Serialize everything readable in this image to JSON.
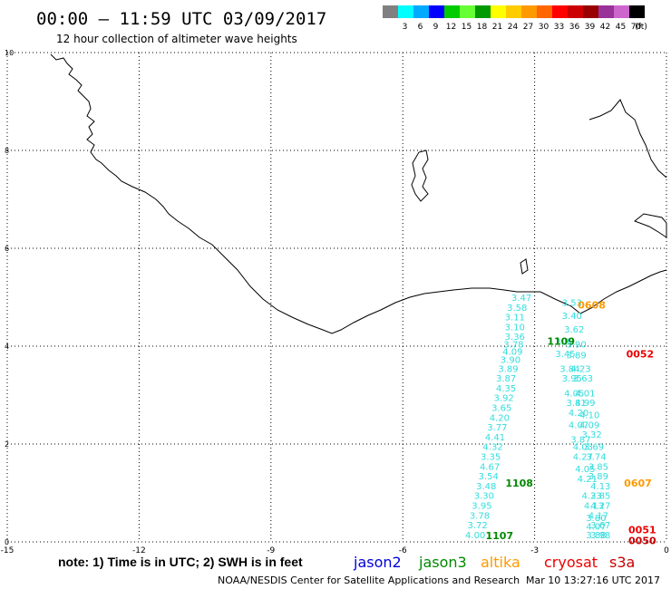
{
  "header": {
    "title": "00:00 – 11:59 UTC 03/09/2017",
    "subtitle": "12 hour collection of altimeter wave heights"
  },
  "scale": {
    "unit": "(ft)",
    "bins": [
      {
        "label": "",
        "color": "#808080"
      },
      {
        "label": "3",
        "color": "#00ffff"
      },
      {
        "label": "6",
        "color": "#00aaff"
      },
      {
        "label": "9",
        "color": "#0000ff"
      },
      {
        "label": "12",
        "color": "#00cc00"
      },
      {
        "label": "15",
        "color": "#66ff33"
      },
      {
        "label": "18",
        "color": "#009900"
      },
      {
        "label": "21",
        "color": "#ffff00"
      },
      {
        "label": "24",
        "color": "#ffcc00"
      },
      {
        "label": "27",
        "color": "#ff9900"
      },
      {
        "label": "30",
        "color": "#ff6600"
      },
      {
        "label": "33",
        "color": "#ff0000"
      },
      {
        "label": "36",
        "color": "#cc0000"
      },
      {
        "label": "39",
        "color": "#990000"
      },
      {
        "label": "42",
        "color": "#993399"
      },
      {
        "label": "45",
        "color": "#cc66cc"
      },
      {
        "label": "70",
        "color": "#000000"
      }
    ]
  },
  "axes": {
    "x_ticks": [
      "-15",
      "-12",
      "-9",
      "-6",
      "-3",
      "0"
    ],
    "y_ticks": [
      "0",
      "2",
      "4",
      "6",
      "8",
      "10"
    ],
    "xlim": [
      -15,
      0
    ],
    "ylim": [
      0,
      10
    ]
  },
  "colors": {
    "swh": "#33dddd",
    "jason2": "#0000dd",
    "jason3": "#008800",
    "altika": "#ff9900",
    "cryosat": "#ee0000",
    "s3a": "#cc0000",
    "coast": "#000000"
  },
  "swh_tracks": [
    {
      "name": "track-west",
      "points": [
        {
          "x": -3.3,
          "y": 5.0,
          "v": "3.47"
        },
        {
          "x": -3.4,
          "y": 4.8,
          "v": "3.58"
        },
        {
          "x": -3.45,
          "y": 4.6,
          "v": "3.11"
        },
        {
          "x": -3.45,
          "y": 4.4,
          "v": "3.10"
        },
        {
          "x": -3.45,
          "y": 4.2,
          "v": "3.36"
        },
        {
          "x": -3.48,
          "y": 4.05,
          "v": "3.78"
        },
        {
          "x": -3.5,
          "y": 3.9,
          "v": "4.09"
        },
        {
          "x": -3.55,
          "y": 3.73,
          "v": "3.90"
        },
        {
          "x": -3.6,
          "y": 3.55,
          "v": "3.89"
        },
        {
          "x": -3.65,
          "y": 3.35,
          "v": "3.87"
        },
        {
          "x": -3.65,
          "y": 3.15,
          "v": "4.35"
        },
        {
          "x": -3.7,
          "y": 2.95,
          "v": "3.92"
        },
        {
          "x": -3.75,
          "y": 2.75,
          "v": "3.65"
        },
        {
          "x": -3.8,
          "y": 2.55,
          "v": "4.20"
        },
        {
          "x": -3.85,
          "y": 2.35,
          "v": "3.77"
        },
        {
          "x": -3.9,
          "y": 2.15,
          "v": "4.41"
        },
        {
          "x": -3.95,
          "y": 1.95,
          "v": "4.32"
        },
        {
          "x": -4.0,
          "y": 1.75,
          "v": "3.35"
        },
        {
          "x": -4.02,
          "y": 1.55,
          "v": "4.67"
        },
        {
          "x": -4.05,
          "y": 1.35,
          "v": "3.54"
        },
        {
          "x": -4.1,
          "y": 1.15,
          "v": "3.48"
        },
        {
          "x": -4.15,
          "y": 0.95,
          "v": "3.30"
        },
        {
          "x": -4.2,
          "y": 0.75,
          "v": "3.95"
        },
        {
          "x": -4.25,
          "y": 0.55,
          "v": "3.78"
        },
        {
          "x": -4.3,
          "y": 0.35,
          "v": "3.72"
        },
        {
          "x": -4.35,
          "y": 0.15,
          "v": "4.00"
        }
      ]
    },
    {
      "name": "track-east",
      "points": [
        {
          "x": -2.15,
          "y": 4.9,
          "v": "3.53"
        },
        {
          "x": -2.15,
          "y": 4.63,
          "v": "3.40"
        },
        {
          "x": -2.1,
          "y": 4.35,
          "v": "3.62"
        },
        {
          "x": -2.05,
          "y": 4.05,
          "v": "3.90"
        },
        {
          "x": -2.3,
          "y": 4.1,
          "v": "3.81"
        },
        {
          "x": -2.05,
          "y": 3.82,
          "v": "3.89"
        },
        {
          "x": -2.3,
          "y": 3.85,
          "v": "3.45"
        },
        {
          "x": -1.95,
          "y": 3.55,
          "v": "4.23"
        },
        {
          "x": -2.2,
          "y": 3.55,
          "v": "3.84"
        },
        {
          "x": -1.9,
          "y": 3.35,
          "v": "3.63"
        },
        {
          "x": -2.15,
          "y": 3.35,
          "v": "3.95"
        },
        {
          "x": -1.85,
          "y": 3.05,
          "v": "4.01"
        },
        {
          "x": -2.1,
          "y": 3.05,
          "v": "4.05"
        },
        {
          "x": -1.85,
          "y": 2.85,
          "v": "4.99"
        },
        {
          "x": -2.05,
          "y": 2.85,
          "v": "3.81"
        },
        {
          "x": -1.75,
          "y": 2.6,
          "v": "4.10"
        },
        {
          "x": -2.0,
          "y": 2.65,
          "v": "4.20"
        },
        {
          "x": -1.75,
          "y": 2.4,
          "v": "4.09"
        },
        {
          "x": -2.0,
          "y": 2.4,
          "v": "4.07"
        },
        {
          "x": -1.7,
          "y": 2.2,
          "v": "3.32"
        },
        {
          "x": -1.95,
          "y": 2.1,
          "v": "3.87"
        },
        {
          "x": -1.65,
          "y": 1.95,
          "v": "3.69"
        },
        {
          "x": -1.9,
          "y": 1.95,
          "v": "4.03"
        },
        {
          "x": -1.6,
          "y": 1.75,
          "v": "3.74"
        },
        {
          "x": -1.9,
          "y": 1.75,
          "v": "4.27"
        },
        {
          "x": -1.55,
          "y": 1.55,
          "v": "3.85"
        },
        {
          "x": -1.85,
          "y": 1.5,
          "v": "4.05"
        },
        {
          "x": -1.55,
          "y": 1.35,
          "v": "3.89"
        },
        {
          "x": -1.8,
          "y": 1.3,
          "v": "4.21"
        },
        {
          "x": -1.5,
          "y": 1.15,
          "v": "4.13"
        },
        {
          "x": -1.5,
          "y": 0.95,
          "v": "3.85"
        },
        {
          "x": -1.7,
          "y": 0.95,
          "v": "4.23"
        },
        {
          "x": -1.5,
          "y": 0.75,
          "v": "4.27"
        },
        {
          "x": -1.65,
          "y": 0.75,
          "v": "4.13"
        },
        {
          "x": -1.55,
          "y": 0.55,
          "v": "4.17"
        },
        {
          "x": -1.6,
          "y": 0.5,
          "v": "3.80"
        },
        {
          "x": -1.5,
          "y": 0.35,
          "v": "3.67"
        },
        {
          "x": -1.6,
          "y": 0.32,
          "v": "4.07"
        },
        {
          "x": -1.5,
          "y": 0.15,
          "v": "3.98"
        },
        {
          "x": -1.6,
          "y": 0.15,
          "v": "3.88"
        }
      ]
    }
  ],
  "pass_labels": [
    {
      "text": "0608",
      "mission": "altika",
      "x": -1.7,
      "y": 4.84
    },
    {
      "text": "1109",
      "mission": "jason3",
      "x": -2.4,
      "y": 4.1
    },
    {
      "text": "0052",
      "mission": "cryosat",
      "x": -0.6,
      "y": 3.84
    },
    {
      "text": "1108",
      "mission": "jason3",
      "x": -3.35,
      "y": 1.2
    },
    {
      "text": "0607",
      "mission": "altika",
      "x": -0.65,
      "y": 1.2
    },
    {
      "text": "1107",
      "mission": "jason3",
      "x": -3.8,
      "y": 0.13
    },
    {
      "text": "0051",
      "mission": "cryosat",
      "x": -0.55,
      "y": 0.25
    },
    {
      "text": "0050",
      "mission": "s3a",
      "x": -0.55,
      "y": 0.03
    }
  ],
  "footer": {
    "note": "note: 1) Time is in UTC; 2) SWH is in feet",
    "legend": [
      {
        "label": "jason2",
        "mission": "jason2"
      },
      {
        "label": "jason3",
        "mission": "jason3"
      },
      {
        "label": "altika",
        "mission": "altika"
      },
      {
        "label": "cryosat",
        "mission": "cryosat"
      },
      {
        "label": "s3a",
        "mission": "s3a"
      }
    ],
    "credit": "NOAA/NESDIS Center for Satellite Applications and Research",
    "timestamp": "Mar 10 13:27:16 UTC 2017"
  }
}
